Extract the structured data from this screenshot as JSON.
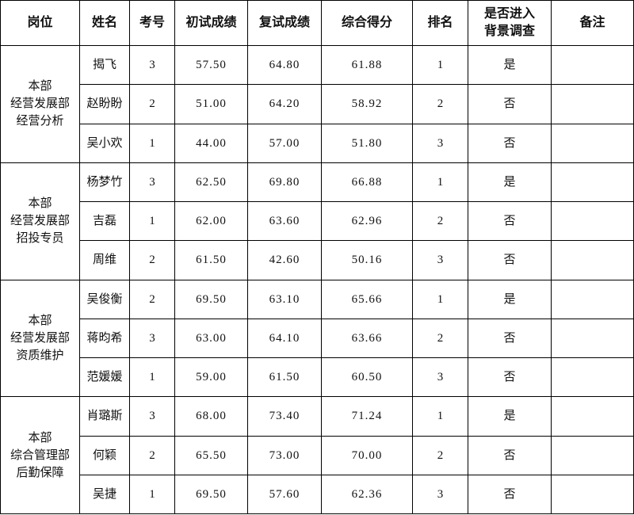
{
  "table": {
    "header": [
      "岗位",
      "姓名",
      "考号",
      "初试成绩",
      "复试成绩",
      "综合得分",
      "排名",
      [
        "是否进入",
        "背景调查"
      ],
      "备注"
    ],
    "groups": [
      {
        "position": [
          "本部",
          "经营发展部",
          "经营分析"
        ],
        "rows": [
          [
            "揭飞",
            "3",
            "57.50",
            "64.80",
            "61.88",
            "1",
            "是"
          ],
          [
            "赵盼盼",
            "2",
            "51.00",
            "64.20",
            "58.92",
            "2",
            "否"
          ],
          [
            "吴小欢",
            "1",
            "44.00",
            "57.00",
            "51.80",
            "3",
            "否"
          ]
        ]
      },
      {
        "position": [
          "本部",
          "经营发展部",
          "招投专员"
        ],
        "rows": [
          [
            "杨梦竹",
            "3",
            "62.50",
            "69.80",
            "66.88",
            "1",
            "是"
          ],
          [
            "吉磊",
            "1",
            "62.00",
            "63.60",
            "62.96",
            "2",
            "否"
          ],
          [
            "周维",
            "2",
            "61.50",
            "42.60",
            "50.16",
            "3",
            "否"
          ]
        ]
      },
      {
        "position": [
          "本部",
          "经营发展部",
          "资质维护"
        ],
        "rows": [
          [
            "吴俊衡",
            "2",
            "69.50",
            "63.10",
            "65.66",
            "1",
            "是"
          ],
          [
            "蒋昀希",
            "3",
            "63.00",
            "64.10",
            "63.66",
            "2",
            "否"
          ],
          [
            "范媛媛",
            "1",
            "59.00",
            "61.50",
            "60.50",
            "3",
            "否"
          ]
        ]
      },
      {
        "position": [
          "本部",
          "综合管理部",
          "后勤保障"
        ],
        "rows": [
          [
            "肖璐斯",
            "3",
            "68.00",
            "73.40",
            "71.24",
            "1",
            "是"
          ],
          [
            "何颖",
            "2",
            "65.50",
            "73.00",
            "70.00",
            "2",
            "否"
          ],
          [
            "吴捷",
            "1",
            "69.50",
            "57.60",
            "62.36",
            "3",
            "否"
          ]
        ]
      }
    ]
  }
}
